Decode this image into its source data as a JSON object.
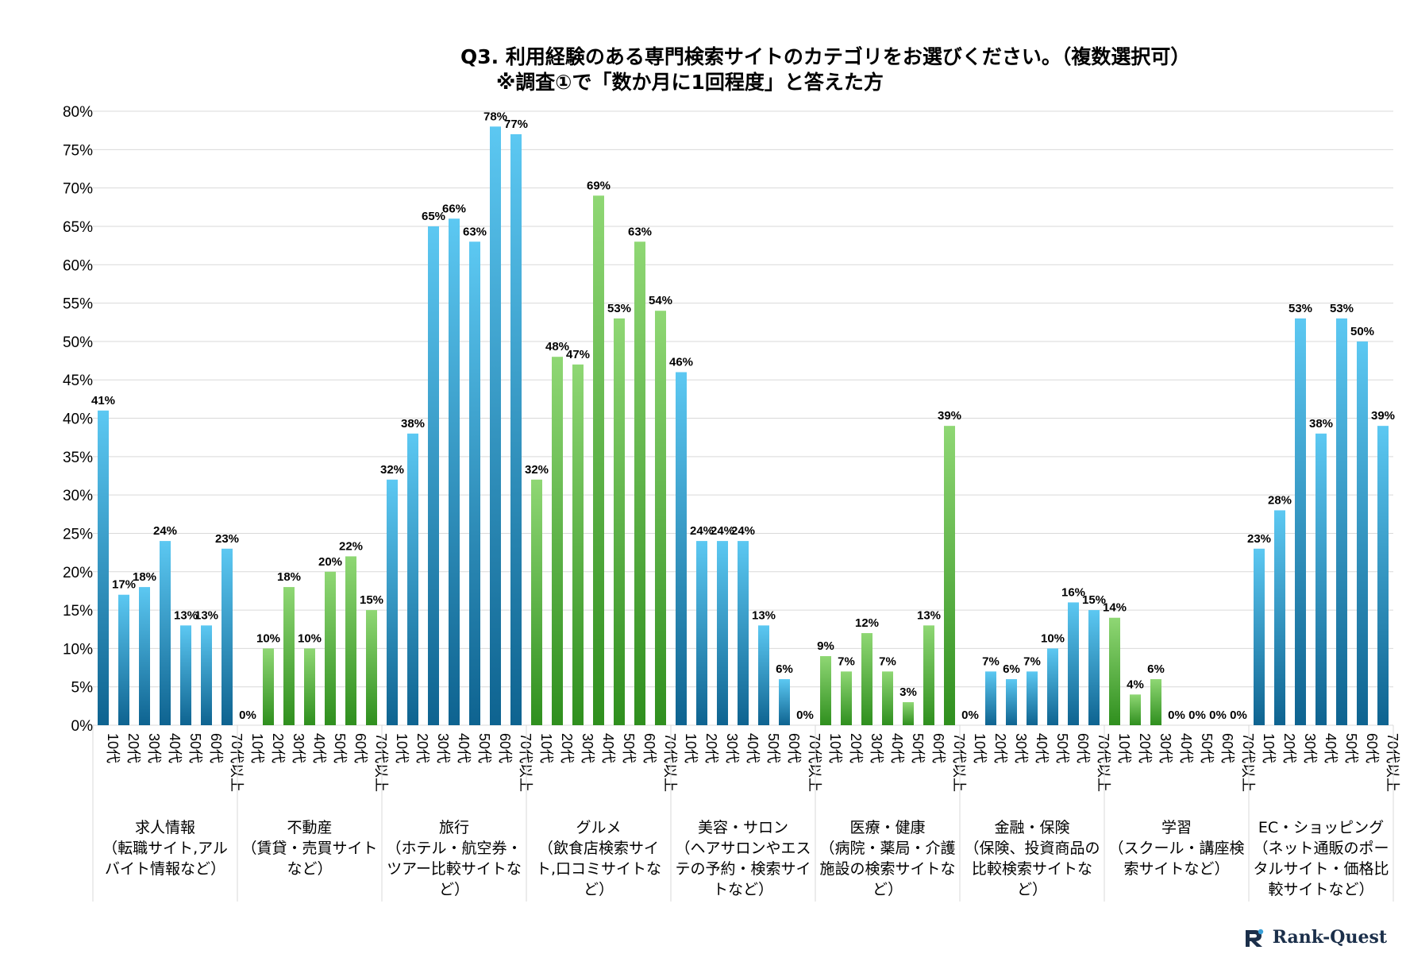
{
  "title": {
    "line1": "Q3. 利用経験のある専門検索サイトのカテゴリをお選びください。（複数選択可）",
    "line2": "※調査①で「数か月に1回程度」と答えた方"
  },
  "brand": {
    "name": "Rank-Quest",
    "logo": "rank-quest-logo-icon"
  },
  "colors": {
    "blue_top": "#5cc8f2",
    "blue_bottom": "#0e6390",
    "green_top": "#8fd774",
    "green_bottom": "#2f8f1e",
    "grid": "#d9d9d9",
    "axis_text": "#000000"
  },
  "chart_data": {
    "type": "bar",
    "title": "Q3. 利用経験のある専門検索サイトのカテゴリをお選びください。（複数選択可） ※調査①で「数か月に1回程度」と答えた方",
    "ylim": [
      0,
      80
    ],
    "yticks": [
      0,
      5,
      10,
      15,
      20,
      25,
      30,
      35,
      40,
      45,
      50,
      55,
      60,
      65,
      70,
      75,
      80
    ],
    "ytick_suffix": "%",
    "grid": true,
    "legend": "none",
    "age_labels": [
      "10代",
      "20代",
      "30代",
      "40代",
      "50代",
      "60代",
      "70代以上"
    ],
    "groups": [
      {
        "name": "求人情報（転職サイト,アルバイト情報など）",
        "label_lines": [
          "求人情報",
          "（転職サイト,アル",
          "バイト情報など）"
        ],
        "color": "blue",
        "values": [
          41,
          17,
          18,
          24,
          13,
          13,
          23
        ]
      },
      {
        "name": "不動産（賃貸・売買サイトなど）",
        "label_lines": [
          "不動産",
          "（賃貸・売買サイト",
          "など）"
        ],
        "color": "green",
        "values": [
          0,
          10,
          18,
          10,
          20,
          22,
          15
        ]
      },
      {
        "name": "旅行（ホテル・航空券・ツアー比較サイトなど）",
        "label_lines": [
          "旅行",
          "（ホテル・航空券・",
          "ツアー比較サイトな",
          "ど）"
        ],
        "color": "blue",
        "values": [
          32,
          38,
          65,
          66,
          63,
          78,
          77
        ]
      },
      {
        "name": "グルメ（飲食店検索サイト,口コミサイトなど）",
        "label_lines": [
          "グルメ",
          "（飲食店検索サイ",
          "ト,口コミサイトな",
          "ど）"
        ],
        "color": "green",
        "values": [
          32,
          48,
          47,
          69,
          53,
          63,
          54
        ]
      },
      {
        "name": "美容・サロン（ヘアサロンやエステの予約・検索サイトなど）",
        "label_lines": [
          "美容・サロン",
          "（ヘアサロンやエス",
          "テの予約・検索サイ",
          "トなど）"
        ],
        "color": "blue",
        "values": [
          46,
          24,
          24,
          24,
          13,
          6,
          0
        ]
      },
      {
        "name": "医療・健康（病院・薬局・介護施設の検索サイトなど）",
        "label_lines": [
          "医療・健康",
          "（病院・薬局・介護",
          "施設の検索サイトな",
          "ど）"
        ],
        "color": "green",
        "values": [
          9,
          7,
          12,
          7,
          3,
          13,
          39
        ]
      },
      {
        "name": "金融・保険（保険、投資商品の比較検索サイトなど）",
        "label_lines": [
          "金融・保険",
          "（保険、投資商品の",
          "比較検索サイトな",
          "ど）"
        ],
        "color": "blue",
        "values": [
          0,
          7,
          6,
          7,
          10,
          16,
          15
        ]
      },
      {
        "name": "学習（スクール・講座検索サイトなど）",
        "label_lines": [
          "学習",
          "（スクール・講座検",
          "索サイトなど）"
        ],
        "color": "green",
        "values": [
          14,
          4,
          6,
          0,
          0,
          0,
          0
        ]
      },
      {
        "name": "EC・ショッピング（ネット通販のポータルサイト・価格比較サイトなど）",
        "label_lines": [
          "EC・ショッピング",
          "（ネット通販のポー",
          "タルサイト・価格比",
          "較サイトなど）"
        ],
        "color": "blue",
        "values": [
          23,
          28,
          53,
          38,
          53,
          50,
          39
        ]
      }
    ]
  }
}
